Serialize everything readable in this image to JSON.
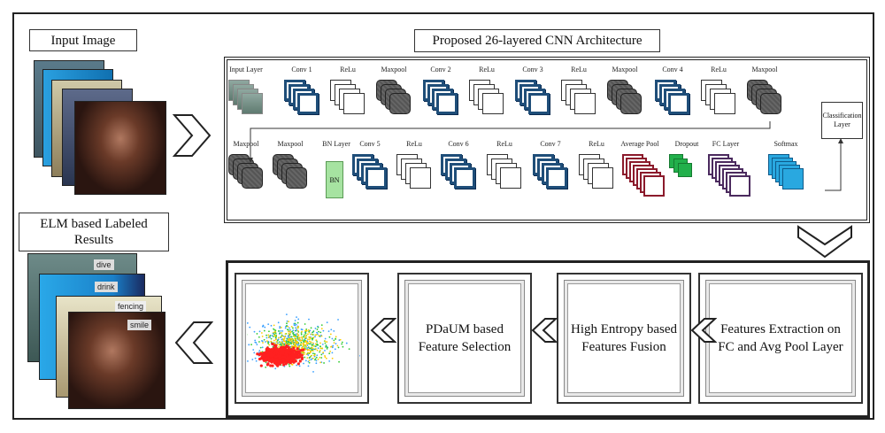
{
  "input": {
    "label": "Input Image"
  },
  "cnn": {
    "title": "Proposed 26-layered CNN Architecture",
    "top_row": [
      {
        "label": "Input Layer",
        "type": "input"
      },
      {
        "label": "Conv 1",
        "type": "conv"
      },
      {
        "label": "ReLu",
        "type": "relu"
      },
      {
        "label": "Maxpool",
        "type": "pool"
      },
      {
        "label": "Conv 2",
        "type": "conv"
      },
      {
        "label": "ReLu",
        "type": "relu"
      },
      {
        "label": "Conv 3",
        "type": "conv"
      },
      {
        "label": "ReLu",
        "type": "relu"
      },
      {
        "label": "Maxpool",
        "type": "pool"
      },
      {
        "label": "Conv 4",
        "type": "conv"
      },
      {
        "label": "ReLu",
        "type": "relu"
      },
      {
        "label": "Maxpool",
        "type": "pool"
      }
    ],
    "bottom_row": [
      {
        "label": "Maxpool",
        "type": "pool"
      },
      {
        "label": "Maxpool",
        "type": "pool"
      },
      {
        "label": "BN Layer",
        "type": "bn",
        "inner": "BN"
      },
      {
        "label": "Conv 5",
        "type": "conv"
      },
      {
        "label": "ReLu",
        "type": "relu"
      },
      {
        "label": "Conv 6",
        "type": "conv"
      },
      {
        "label": "ReLu",
        "type": "relu"
      },
      {
        "label": "Conv 7",
        "type": "conv"
      },
      {
        "label": "ReLu",
        "type": "relu"
      },
      {
        "label": "Average Pool",
        "type": "avg"
      },
      {
        "label": "Dropout",
        "type": "drop"
      },
      {
        "label": "FC Layer",
        "type": "fc"
      },
      {
        "label": "Softmax",
        "type": "soft"
      }
    ],
    "classification": "Classification Layer",
    "colors": {
      "conv": "#1f4e79",
      "relu": "#ffffff",
      "pool": "#555555",
      "avg": "#8b1a2b",
      "drop": "#22b04b",
      "fc": "#4b2a5e",
      "soft": "#29a8e0",
      "bn": "#a6e3a1"
    }
  },
  "pipeline": {
    "step1": "Features Extraction on FC and Avg Pool Layer",
    "step2": "High Entropy based Features Fusion",
    "step3": "PDaUM based Feature Selection"
  },
  "results": {
    "label": "ELM based Labeled Results",
    "tags": [
      "dive",
      "drink",
      "fencing",
      "smile"
    ]
  }
}
